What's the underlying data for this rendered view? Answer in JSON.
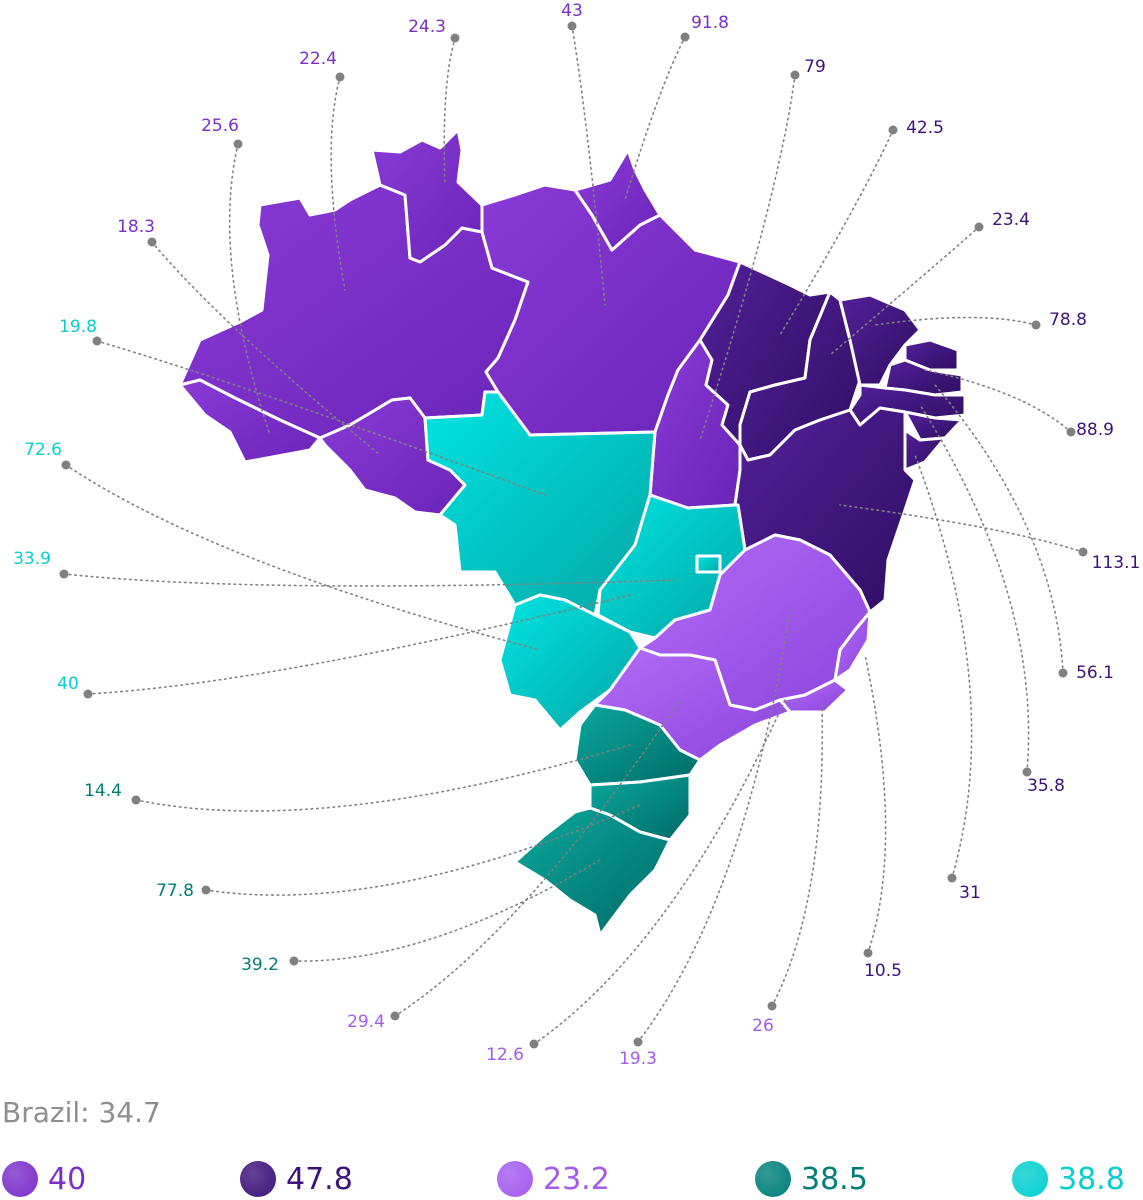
{
  "colors": {
    "north": "#7b2fc9",
    "northeast": "#3d137a",
    "southeast": "#a45af0",
    "south": "#007f7a",
    "centerwest": "#06cfcf",
    "connector": "#808080",
    "summary": "#8e8e8e"
  },
  "summary_text": "Brazil: 34.7",
  "legend": [
    {
      "value": "40",
      "color": "#7b2fc9"
    },
    {
      "value": "47.8",
      "color": "#3d137a"
    },
    {
      "value": "23.2",
      "color": "#a45af0"
    },
    {
      "value": "38.5",
      "color": "#007f7a"
    },
    {
      "value": "38.8",
      "color": "#06cfcf"
    }
  ],
  "labels": [
    {
      "value": "24.3",
      "color": "#7b2fc9"
    },
    {
      "value": "43",
      "color": "#7b2fc9"
    },
    {
      "value": "91.8",
      "color": "#7b2fc9"
    },
    {
      "value": "22.4",
      "color": "#7b2fc9"
    },
    {
      "value": "79",
      "color": "#3d137a"
    },
    {
      "value": "25.6",
      "color": "#7b2fc9"
    },
    {
      "value": "42.5",
      "color": "#3d137a"
    },
    {
      "value": "18.3",
      "color": "#7b2fc9"
    },
    {
      "value": "23.4",
      "color": "#3d137a"
    },
    {
      "value": "19.8",
      "color": "#06cfcf"
    },
    {
      "value": "78.8",
      "color": "#3d137a"
    },
    {
      "value": "88.9",
      "color": "#3d137a"
    },
    {
      "value": "72.6",
      "color": "#06cfcf"
    },
    {
      "value": "33.9",
      "color": "#06cfcf"
    },
    {
      "value": "113.1",
      "color": "#3d137a"
    },
    {
      "value": "56.1",
      "color": "#3d137a"
    },
    {
      "value": "40",
      "color": "#06cfcf"
    },
    {
      "value": "14.4",
      "color": "#007f7a"
    },
    {
      "value": "35.8",
      "color": "#3d137a"
    },
    {
      "value": "31",
      "color": "#3d137a"
    },
    {
      "value": "77.8",
      "color": "#007f7a"
    },
    {
      "value": "39.2",
      "color": "#007f7a"
    },
    {
      "value": "10.5",
      "color": "#3d137a"
    },
    {
      "value": "29.4",
      "color": "#a45af0"
    },
    {
      "value": "26",
      "color": "#a45af0"
    },
    {
      "value": "12.6",
      "color": "#a45af0"
    },
    {
      "value": "19.3",
      "color": "#a45af0"
    }
  ]
}
